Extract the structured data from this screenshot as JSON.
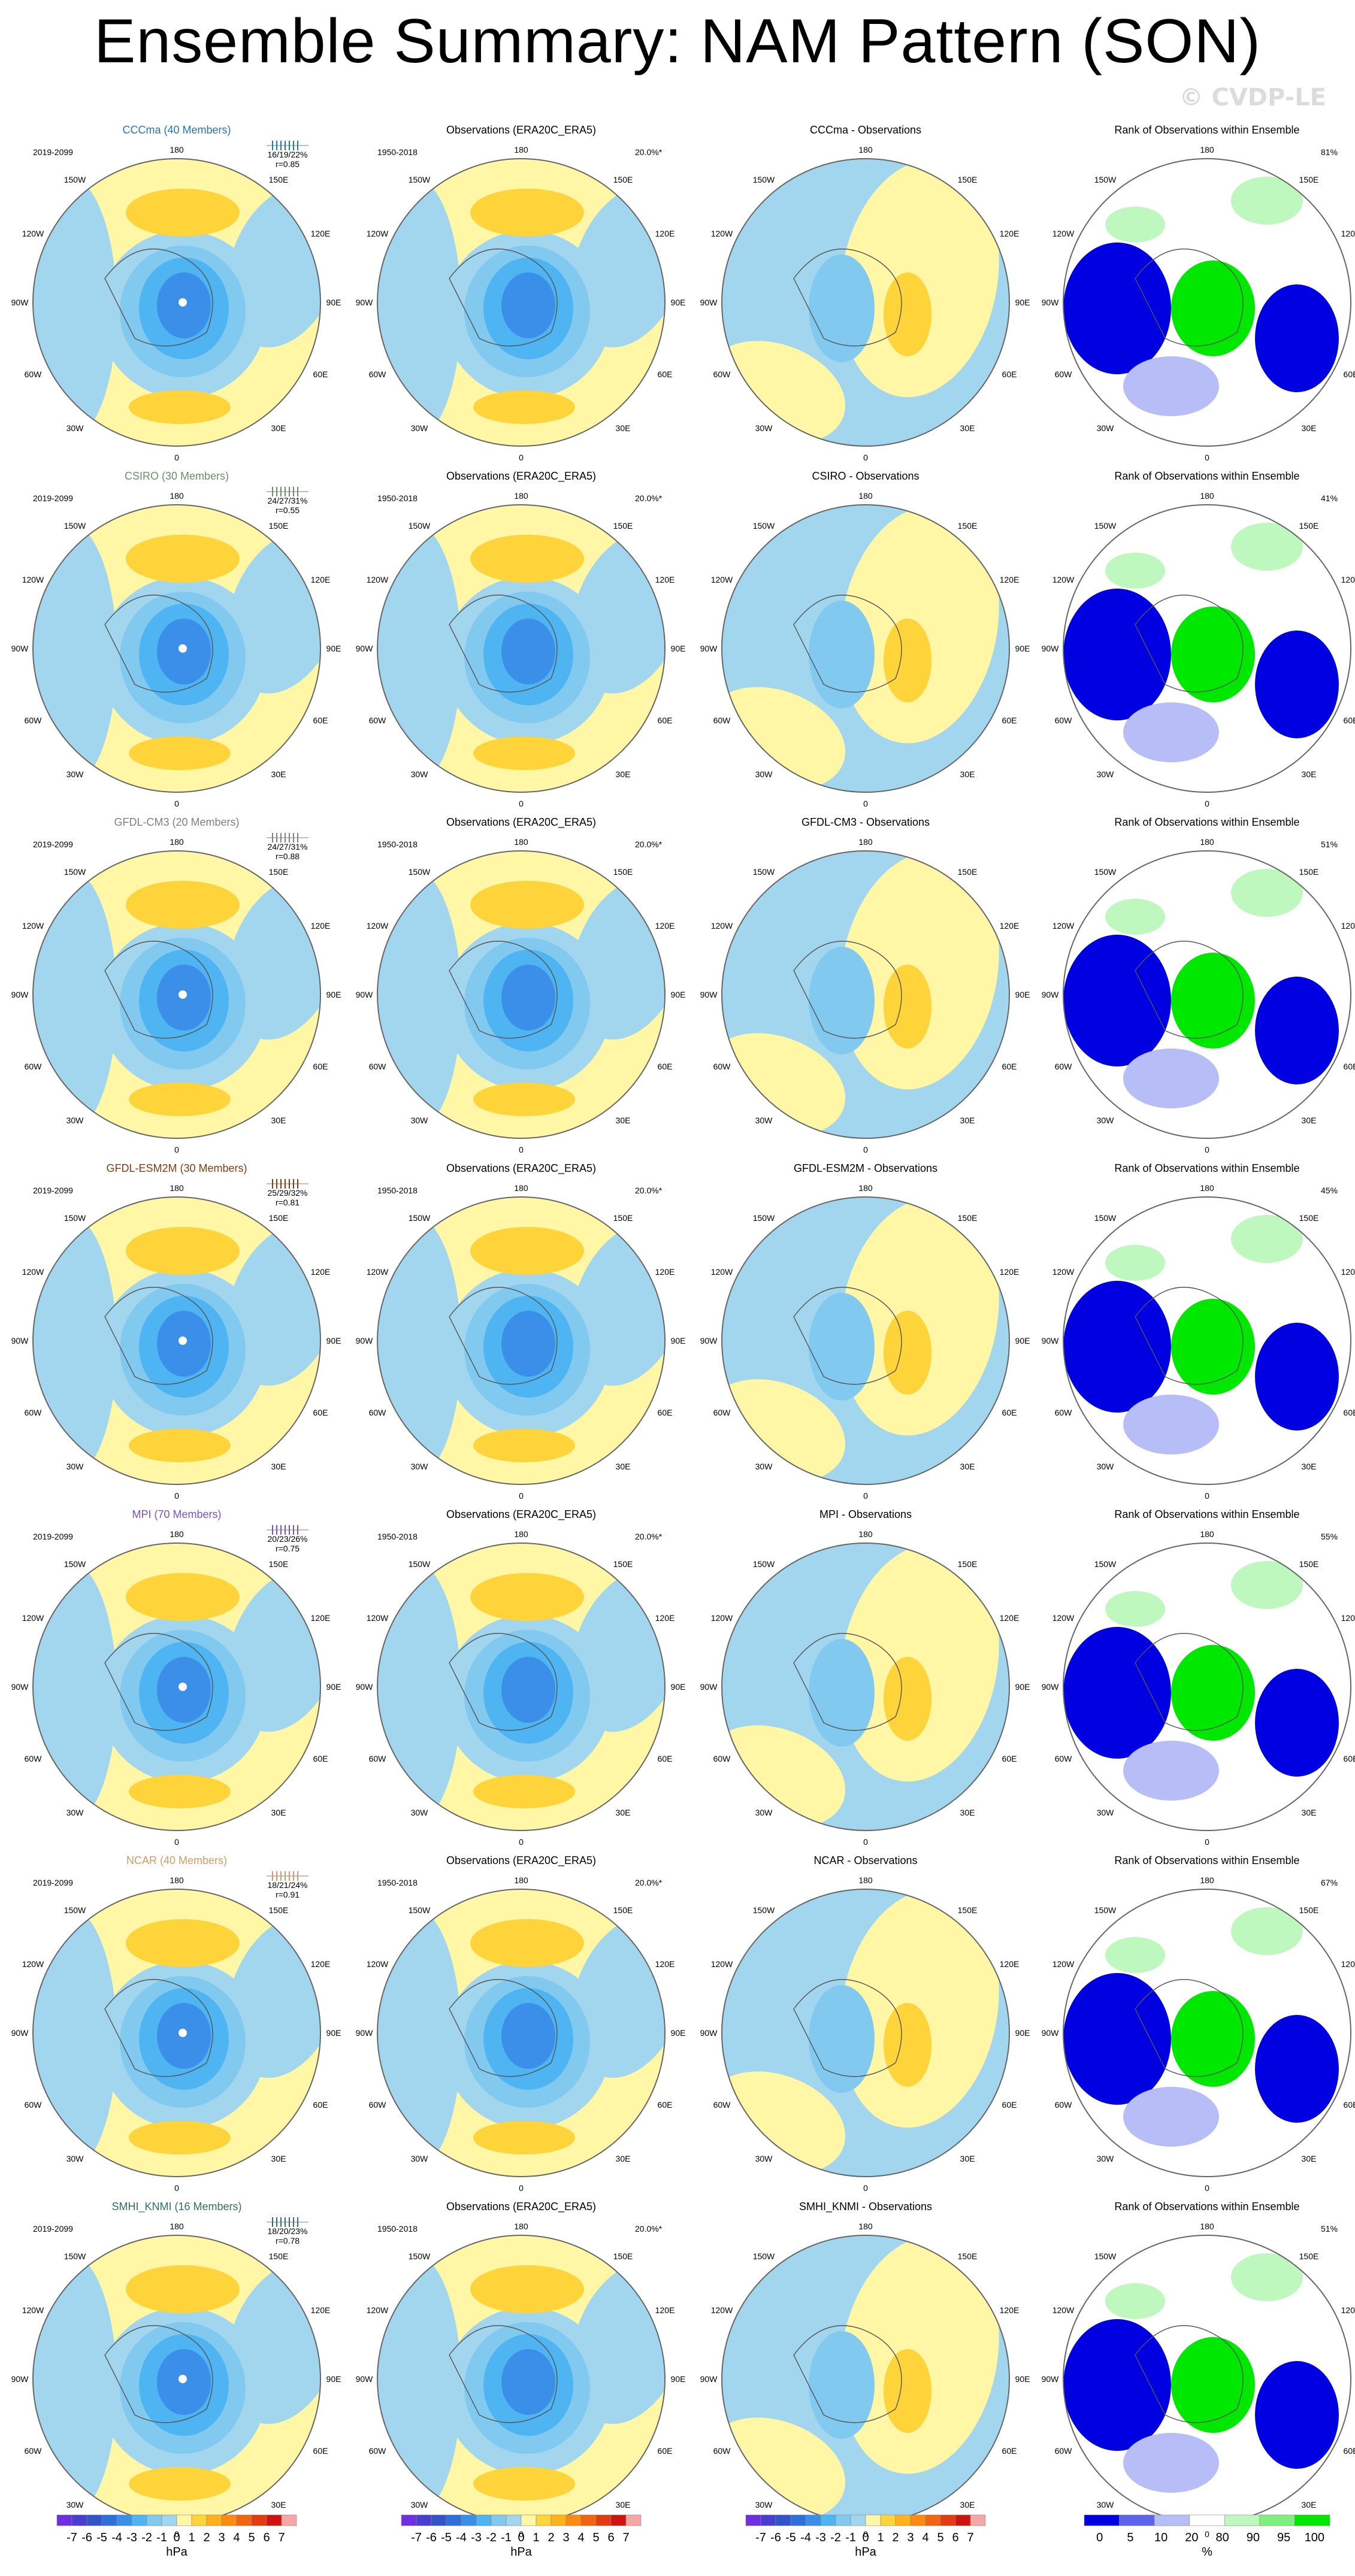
{
  "title": "Ensemble Summary: NAM Pattern (SON)",
  "watermark": "© CVDP-LE",
  "colors": {
    "neg": [
      "#a1d6ee",
      "#82c9f0",
      "#4fb4f2",
      "#3b8fe8",
      "#2f6fdb",
      "#3155c8",
      "#4a3ed0",
      "#6f2fe0"
    ],
    "pos": [
      "#fff6a6",
      "#ffd33a",
      "#ffb21c",
      "#ff8a10",
      "#f26410",
      "#e23c10",
      "#cf1410",
      "#f7a6a6"
    ],
    "rank": {
      "blue": "#0000e0",
      "lightblue": "#5c64ec",
      "paleblue": "#b7bdf6",
      "white": "#ffffff",
      "palegreen": "#bff8bf",
      "lightgreen": "#7ff07f",
      "green": "#00e800"
    },
    "model_colors": {
      "CCCma": "#1f78b4",
      "CSIRO": "#6a8f6a",
      "GFDL-CM3": "#808080",
      "GFDL-ESM2M": "#8b3a0f",
      "MPI": "#7a52c7",
      "NCAR": "#d79a64",
      "SMHI_KNMI": "#2f6f6f"
    }
  },
  "longitude_labels": {
    "top": "180",
    "bottom": "0",
    "left": [
      "150W",
      "120W",
      "90W",
      "60W",
      "30W"
    ],
    "right": [
      "150E",
      "120E",
      "90E",
      "60E",
      "30E"
    ]
  },
  "rows": [
    {
      "model": "CCCma (40 Members)",
      "period": "2019-2099",
      "spread": "16/19/22%",
      "corr": "r=0.85",
      "color_key": "CCCma",
      "obs_title": "Observations (ERA20C_ERA5)",
      "obs_period": "1950-2018",
      "obs_pct": "20.0%*",
      "diff_title": "CCCma - Observations",
      "rank_title": "Rank of Observations within Ensemble",
      "rank_pct": "81%"
    },
    {
      "model": "CSIRO (30 Members)",
      "period": "2019-2099",
      "spread": "24/27/31%",
      "corr": "r=0.55",
      "color_key": "CSIRO",
      "obs_title": "Observations (ERA20C_ERA5)",
      "obs_period": "1950-2018",
      "obs_pct": "20.0%*",
      "diff_title": "CSIRO - Observations",
      "rank_title": "Rank of Observations within Ensemble",
      "rank_pct": "41%"
    },
    {
      "model": "GFDL-CM3 (20 Members)",
      "period": "2019-2099",
      "spread": "24/27/31%",
      "corr": "r=0.88",
      "color_key": "GFDL-CM3",
      "obs_title": "Observations (ERA20C_ERA5)",
      "obs_period": "1950-2018",
      "obs_pct": "20.0%*",
      "diff_title": "GFDL-CM3 - Observations",
      "rank_title": "Rank of Observations within Ensemble",
      "rank_pct": "51%"
    },
    {
      "model": "GFDL-ESM2M (30 Members)",
      "period": "2019-2099",
      "spread": "25/29/32%",
      "corr": "r=0.81",
      "color_key": "GFDL-ESM2M",
      "obs_title": "Observations (ERA20C_ERA5)",
      "obs_period": "1950-2018",
      "obs_pct": "20.0%*",
      "diff_title": "GFDL-ESM2M - Observations",
      "rank_title": "Rank of Observations within Ensemble",
      "rank_pct": "45%"
    },
    {
      "model": "MPI (70 Members)",
      "period": "2019-2099",
      "spread": "20/23/26%",
      "corr": "r=0.75",
      "color_key": "MPI",
      "obs_title": "Observations (ERA20C_ERA5)",
      "obs_period": "1950-2018",
      "obs_pct": "20.0%*",
      "diff_title": "MPI - Observations",
      "rank_title": "Rank of Observations within Ensemble",
      "rank_pct": "55%"
    },
    {
      "model": "NCAR (40 Members)",
      "period": "2019-2099",
      "spread": "18/21/24%",
      "corr": "r=0.91",
      "color_key": "NCAR",
      "obs_title": "Observations (ERA20C_ERA5)",
      "obs_period": "1950-2018",
      "obs_pct": "20.0%*",
      "diff_title": "NCAR - Observations",
      "rank_title": "Rank of Observations within Ensemble",
      "rank_pct": "67%"
    },
    {
      "model": "SMHI_KNMI (16 Members)",
      "period": "2019-2099",
      "spread": "18/20/23%",
      "corr": "r=0.78",
      "color_key": "SMHI_KNMI",
      "obs_title": "Observations (ERA20C_ERA5)",
      "obs_period": "1950-2018",
      "obs_pct": "20.0%*",
      "diff_title": "SMHI_KNMI - Observations",
      "rank_title": "Rank of Observations within Ensemble",
      "rank_pct": "51%"
    }
  ],
  "colorbars": [
    {
      "labels": [
        "-7",
        "-6",
        "-5",
        "-4",
        "-3",
        "-2",
        "-1",
        "0",
        "1",
        "2",
        "3",
        "4",
        "5",
        "6",
        "7"
      ],
      "unit": "hPa"
    },
    {
      "labels": [
        "-7",
        "-6",
        "-5",
        "-4",
        "-3",
        "-2",
        "-1",
        "0",
        "1",
        "2",
        "3",
        "4",
        "5",
        "6",
        "7"
      ],
      "unit": "hPa"
    },
    {
      "labels": [
        "-7",
        "-6",
        "-5",
        "-4",
        "-3",
        "-2",
        "-1",
        "0",
        "1",
        "2",
        "3",
        "4",
        "5",
        "6",
        "7"
      ],
      "unit": "hPa"
    },
    {
      "labels": [
        "0",
        "5",
        "10",
        "20",
        "80",
        "90",
        "95",
        "100"
      ],
      "unit": "%"
    }
  ],
  "chart_data": {
    "type": "heatmap",
    "projection": "north polar stereographic",
    "variable": "NAM Pattern (SON)",
    "units": "hPa",
    "contour_levels": [
      -7,
      -6,
      -5,
      -4,
      -3,
      -2,
      -1,
      0,
      1,
      2,
      3,
      4,
      5,
      6,
      7
    ],
    "rank_levels": [
      0,
      5,
      10,
      20,
      80,
      90,
      95,
      100
    ],
    "rank_units": "%"
  }
}
